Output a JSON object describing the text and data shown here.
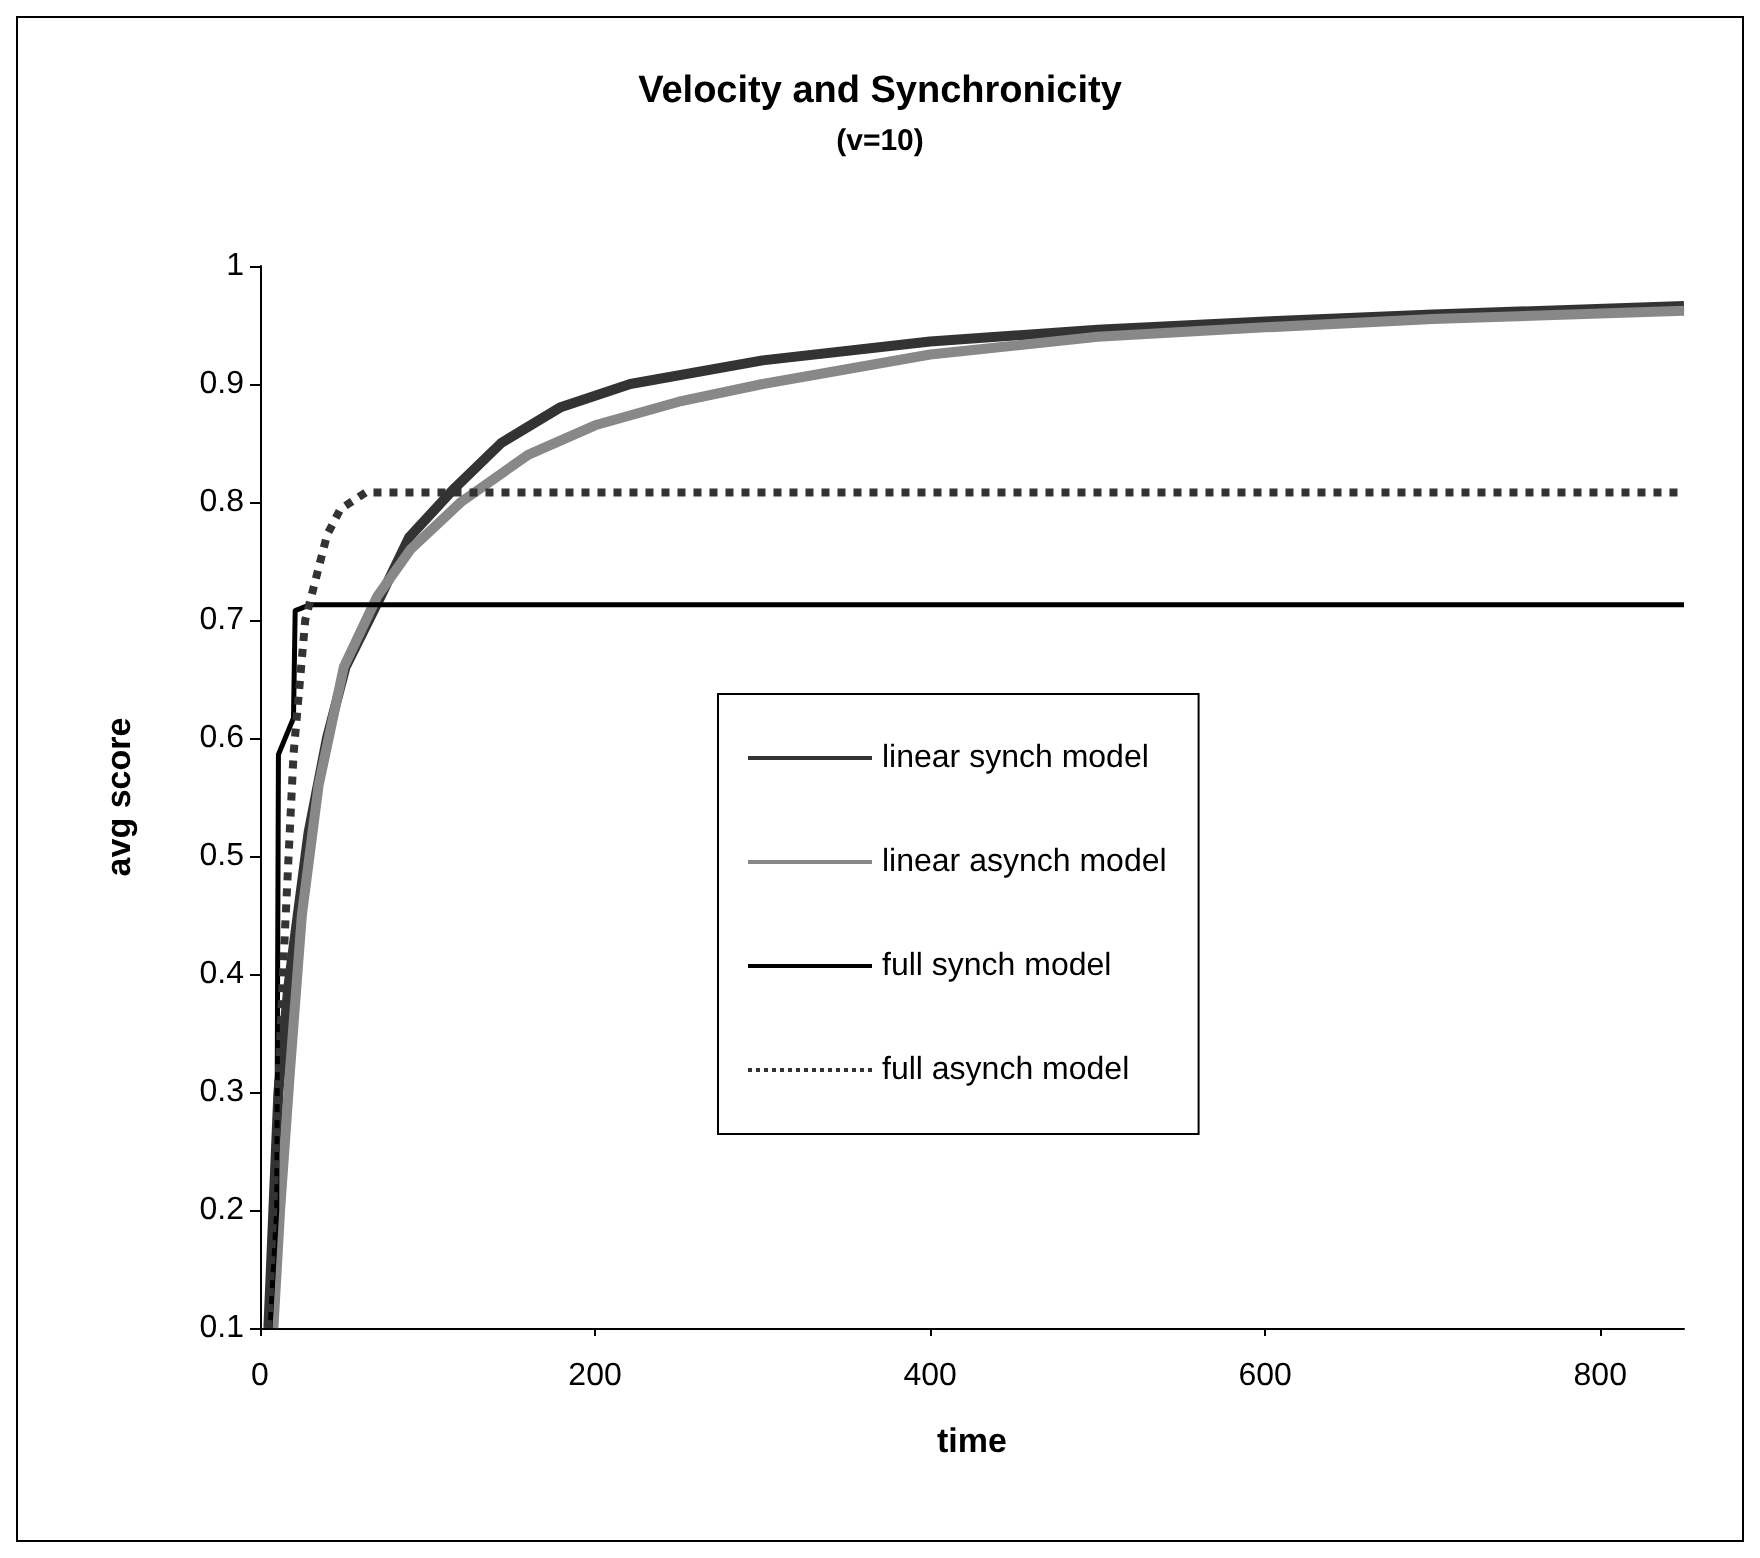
{
  "chart_data": {
    "type": "line",
    "title": "Velocity and Synchronicity",
    "subtitle": "(v=10)",
    "xlabel": "time",
    "ylabel": "avg score",
    "xlim": [
      0,
      850
    ],
    "xticks": [
      0,
      200,
      400,
      600,
      800
    ],
    "ylim": [
      0.1,
      1
    ],
    "yticks": [
      0.1,
      0.2,
      0.3,
      0.4,
      0.5,
      0.6,
      0.7,
      0.8,
      0.9,
      1
    ],
    "grid": false,
    "legend": "bottom",
    "marker": "none",
    "series": [
      {
        "name": "linear synch model",
        "color": "#333333",
        "line_style": "solid",
        "x": [
          5,
          11,
          17,
          29,
          40,
          51,
          72,
          89,
          115,
          144,
          179,
          221,
          300,
          400,
          500,
          600,
          700,
          850
        ],
        "values": [
          0.1,
          0.3,
          0.39,
          0.52,
          0.6,
          0.66,
          0.72,
          0.77,
          0.81,
          0.85,
          0.88,
          0.9,
          0.92,
          0.936,
          0.946,
          0.953,
          0.959,
          0.966
        ]
      },
      {
        "name": "linear asynch model",
        "color": "#888888",
        "line_style": "solid",
        "x": [
          8,
          12,
          18,
          25,
          35,
          50,
          70,
          90,
          120,
          160,
          200,
          250,
          300,
          400,
          500,
          600,
          700,
          850
        ],
        "values": [
          0.1,
          0.2,
          0.32,
          0.45,
          0.56,
          0.66,
          0.72,
          0.76,
          0.8,
          0.84,
          0.865,
          0.885,
          0.9,
          0.925,
          0.94,
          0.948,
          0.955,
          0.962
        ]
      },
      {
        "name": "full synch model",
        "color": "#000000",
        "line_style": "solid",
        "x": [
          6,
          10,
          11,
          20,
          21,
          30,
          850
        ],
        "values": [
          0.1,
          0.2,
          0.586,
          0.617,
          0.708,
          0.713,
          0.713
        ]
      },
      {
        "name": "full asynch model",
        "color": "#333333",
        "line_style": "dotted",
        "x": [
          5,
          14,
          20,
          27,
          40,
          48,
          63,
          850
        ],
        "values": [
          0.1,
          0.41,
          0.586,
          0.7,
          0.772,
          0.794,
          0.808,
          0.808
        ]
      }
    ]
  }
}
